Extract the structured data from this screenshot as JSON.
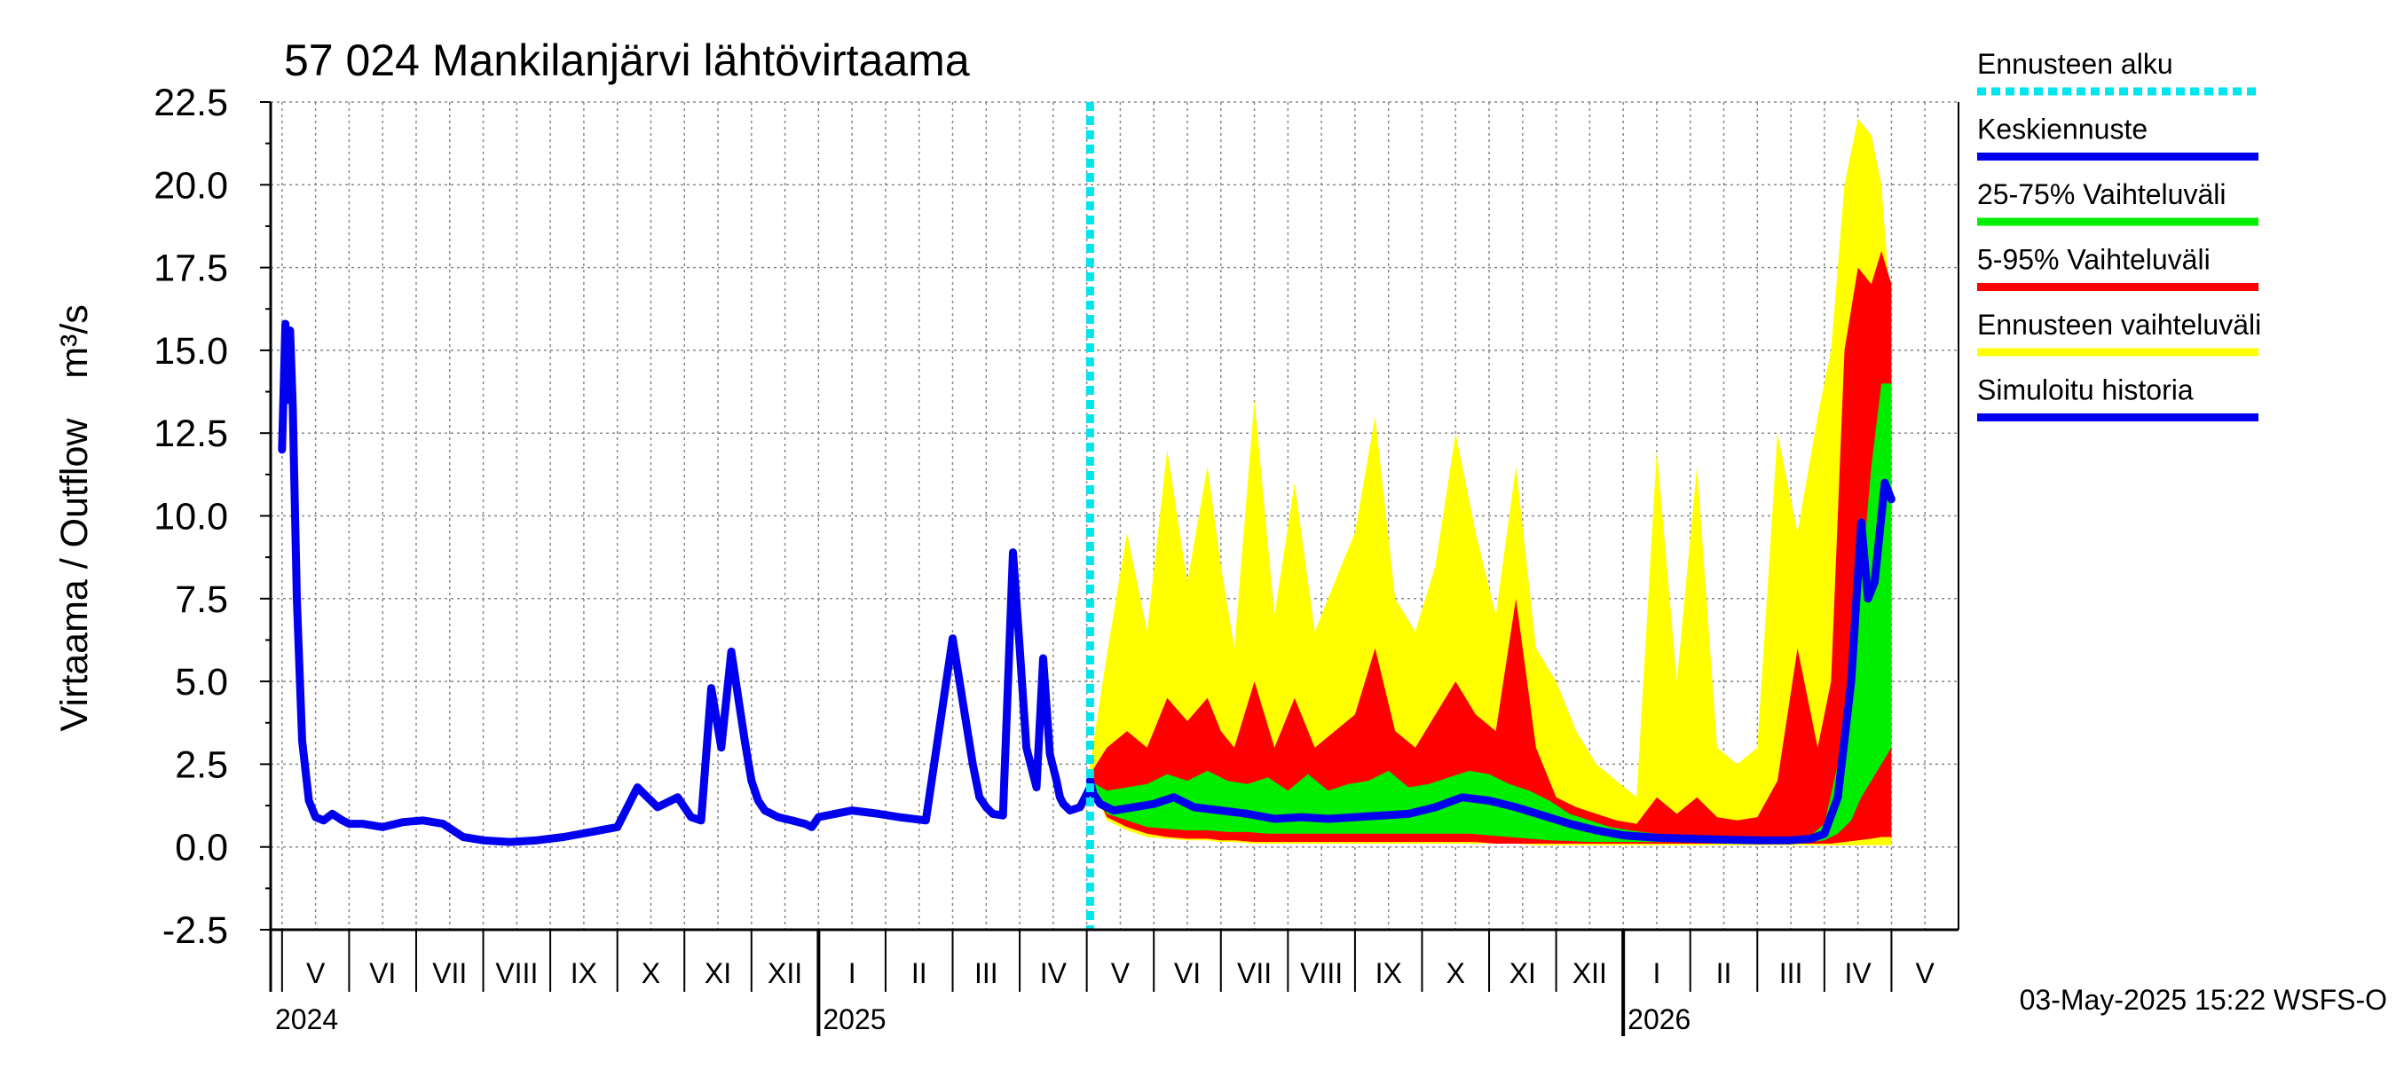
{
  "chart_data": {
    "type": "area",
    "title": "57 024 Mankilanjärvi lähtövirtaama",
    "ylabel_left": "Virtaama / Outflow",
    "ylabel_right": "m³/s",
    "ylim": [
      -2.5,
      22.5
    ],
    "y_ticks": [
      "22.5",
      "20.0",
      "17.5",
      "15.0",
      "12.5",
      "10.0",
      "7.5",
      "5.0",
      "2.5",
      "0.0",
      "-2.5"
    ],
    "grid": true,
    "x_range": [
      "2024-04-01",
      "2026-05-31"
    ],
    "forecast_start": "2025-05-03",
    "months": [
      {
        "label": "V",
        "start": "2024-05-01"
      },
      {
        "label": "VI",
        "start": "2024-06-01"
      },
      {
        "label": "VII",
        "start": "2024-07-01"
      },
      {
        "label": "VIII",
        "start": "2024-08-01"
      },
      {
        "label": "IX",
        "start": "2024-09-01"
      },
      {
        "label": "X",
        "start": "2024-10-01"
      },
      {
        "label": "XI",
        "start": "2024-11-01"
      },
      {
        "label": "XII",
        "start": "2024-12-01"
      },
      {
        "label": "I",
        "start": "2025-01-01"
      },
      {
        "label": "II",
        "start": "2025-02-01"
      },
      {
        "label": "III",
        "start": "2025-03-01"
      },
      {
        "label": "IV",
        "start": "2025-04-01"
      },
      {
        "label": "V",
        "start": "2025-05-01"
      },
      {
        "label": "VI",
        "start": "2025-06-01"
      },
      {
        "label": "VII",
        "start": "2025-07-01"
      },
      {
        "label": "VIII",
        "start": "2025-08-01"
      },
      {
        "label": "IX",
        "start": "2025-09-01"
      },
      {
        "label": "X",
        "start": "2025-10-01"
      },
      {
        "label": "XI",
        "start": "2025-11-01"
      },
      {
        "label": "XII",
        "start": "2025-12-01"
      },
      {
        "label": "I",
        "start": "2026-01-01"
      },
      {
        "label": "II",
        "start": "2026-02-01"
      },
      {
        "label": "III",
        "start": "2026-03-01"
      },
      {
        "label": "IV",
        "start": "2026-04-01"
      },
      {
        "label": "V",
        "start": "2026-05-01"
      }
    ],
    "years": [
      {
        "label": "2024",
        "month_index": 0
      },
      {
        "label": "2025",
        "month_index": 8
      },
      {
        "label": "2026",
        "month_index": 20
      }
    ],
    "legend": [
      {
        "label": "Ennusteen alku",
        "color": "#00e5ee",
        "style": "dashed"
      },
      {
        "label": "Keskiennuste",
        "color": "#0000ee",
        "style": "solid"
      },
      {
        "label": "25-75% Vaihteluväli",
        "color": "#00ee00",
        "style": "solid"
      },
      {
        "label": "5-95% Vaihteluväli",
        "color": "#ff0000",
        "style": "solid"
      },
      {
        "label": "Ennusteen vaihteluväli",
        "color": "#ffff00",
        "style": "solid"
      },
      {
        "label": "Simuloitu historia",
        "color": "#0000ee",
        "style": "solid"
      }
    ],
    "footer": "03-May-2025 15:22 WSFS-O",
    "series": [
      {
        "name": "Simuloitu historia",
        "x": [
          0,
          0.05,
          0.08,
          0.12,
          0.16,
          0.22,
          0.3,
          0.4,
          0.5,
          0.62,
          0.75,
          0.9,
          1.0,
          1.2,
          1.5,
          1.8,
          2.1,
          2.4,
          2.7,
          3.0,
          3.4,
          3.8,
          4.2,
          4.6,
          5.0,
          5.3,
          5.6,
          5.9,
          6.0,
          6.1,
          6.25,
          6.4,
          6.55,
          6.7,
          6.9,
          7.0,
          7.1,
          7.2,
          7.3,
          7.4,
          7.5,
          7.6,
          7.7,
          7.8,
          7.9,
          8.0,
          8.5,
          8.9,
          9.2,
          9.6,
          10.0,
          10.3,
          10.4,
          10.5,
          10.6,
          10.75,
          10.9,
          11.0,
          11.1,
          11.25,
          11.35,
          11.45,
          11.55,
          11.6,
          11.65,
          11.75,
          11.9,
          12.05
        ],
        "values": [
          12.0,
          15.8,
          13.5,
          15.6,
          13.3,
          7.5,
          3.2,
          1.4,
          0.9,
          0.8,
          1.0,
          0.8,
          0.7,
          0.7,
          0.6,
          0.75,
          0.8,
          0.7,
          0.3,
          0.2,
          0.15,
          0.2,
          0.3,
          0.45,
          0.6,
          1.8,
          1.2,
          1.5,
          1.2,
          0.9,
          0.8,
          4.8,
          3.0,
          5.9,
          3.2,
          2.0,
          1.4,
          1.1,
          1.0,
          0.9,
          0.85,
          0.8,
          0.75,
          0.7,
          0.6,
          0.9,
          1.1,
          1.0,
          0.9,
          0.8,
          6.3,
          2.5,
          1.5,
          1.2,
          1.0,
          0.95,
          8.9,
          6.0,
          3.0,
          1.8,
          5.7,
          2.8,
          2.0,
          1.5,
          1.3,
          1.1,
          1.2,
          1.8
        ]
      },
      {
        "name": "Keskiennuste",
        "x": [
          12.05,
          12.1,
          12.2,
          12.4,
          12.7,
          13.0,
          13.3,
          13.6,
          14.0,
          14.4,
          14.8,
          15.2,
          15.6,
          16.0,
          16.4,
          16.8,
          17.2,
          17.6,
          18.0,
          18.4,
          18.8,
          19.2,
          19.6,
          20.0,
          20.5,
          21.0,
          21.5,
          22.0,
          22.5,
          22.8,
          23.0,
          23.2,
          23.4,
          23.55,
          23.65,
          23.75,
          23.9,
          24.0
        ],
        "values": [
          2.0,
          1.6,
          1.3,
          1.1,
          1.2,
          1.3,
          1.5,
          1.2,
          1.1,
          1.0,
          0.85,
          0.9,
          0.85,
          0.9,
          0.95,
          1.0,
          1.2,
          1.5,
          1.4,
          1.2,
          0.95,
          0.7,
          0.5,
          0.35,
          0.28,
          0.25,
          0.22,
          0.2,
          0.2,
          0.25,
          0.4,
          1.5,
          5.0,
          9.8,
          7.5,
          8.0,
          11.0,
          10.5
        ]
      },
      {
        "name": "Ennusteen vaihteluväli",
        "x": [
          12.05,
          12.3,
          12.6,
          12.9,
          13.2,
          13.5,
          13.8,
          14.0,
          14.2,
          14.5,
          14.8,
          15.1,
          15.4,
          15.7,
          16.0,
          16.3,
          16.6,
          16.9,
          17.2,
          17.5,
          17.8,
          18.1,
          18.4,
          18.7,
          19.0,
          19.3,
          19.6,
          19.9,
          20.2,
          20.5,
          20.8,
          21.1,
          21.4,
          21.7,
          22.0,
          22.3,
          22.6,
          22.9,
          23.1,
          23.3,
          23.5,
          23.7,
          23.85,
          24.0
        ],
        "upper": [
          2.5,
          5.8,
          9.5,
          6.5,
          12.0,
          8.0,
          11.5,
          8.5,
          6.0,
          13.5,
          7.0,
          11.0,
          6.5,
          8.0,
          9.5,
          13.0,
          7.5,
          6.5,
          8.5,
          12.5,
          9.5,
          7.0,
          11.5,
          6.0,
          5.0,
          3.5,
          2.5,
          2.0,
          1.5,
          12.0,
          5.0,
          11.5,
          3.0,
          2.5,
          3.0,
          12.5,
          9.5,
          13.0,
          15.0,
          20.0,
          22.0,
          21.5,
          20.0,
          16.0
        ],
        "lower": [
          2.0,
          0.8,
          0.5,
          0.3,
          0.25,
          0.2,
          0.2,
          0.15,
          0.15,
          0.1,
          0.1,
          0.1,
          0.1,
          0.1,
          0.1,
          0.1,
          0.1,
          0.1,
          0.1,
          0.1,
          0.1,
          0.1,
          0.1,
          0.05,
          0.05,
          0.05,
          0.05,
          0.05,
          0.05,
          0.05,
          0.05,
          0.05,
          0.05,
          0.05,
          0.05,
          0.05,
          0.05,
          0.05,
          0.05,
          0.05,
          0.05,
          0.05,
          0.05,
          0.05
        ]
      },
      {
        "name": "5-95% Vaihteluväli",
        "x": [
          12.05,
          12.3,
          12.6,
          12.9,
          13.2,
          13.5,
          13.8,
          14.0,
          14.2,
          14.5,
          14.8,
          15.1,
          15.4,
          15.7,
          16.0,
          16.3,
          16.6,
          16.9,
          17.2,
          17.5,
          17.8,
          18.1,
          18.4,
          18.7,
          19.0,
          19.3,
          19.6,
          19.9,
          20.2,
          20.5,
          20.8,
          21.1,
          21.4,
          21.7,
          22.0,
          22.3,
          22.6,
          22.9,
          23.1,
          23.3,
          23.5,
          23.7,
          23.85,
          24.0
        ],
        "upper": [
          2.2,
          3.0,
          3.5,
          3.0,
          4.5,
          3.8,
          4.5,
          3.5,
          3.0,
          5.0,
          3.0,
          4.5,
          3.0,
          3.5,
          4.0,
          6.0,
          3.5,
          3.0,
          4.0,
          5.0,
          4.0,
          3.5,
          7.5,
          3.0,
          1.5,
          1.2,
          1.0,
          0.8,
          0.7,
          1.5,
          1.0,
          1.5,
          0.9,
          0.8,
          0.9,
          2.0,
          6.0,
          3.0,
          5.0,
          15.0,
          17.5,
          17.0,
          18.0,
          17.0
        ],
        "lower": [
          2.0,
          0.9,
          0.6,
          0.4,
          0.3,
          0.25,
          0.25,
          0.2,
          0.2,
          0.15,
          0.15,
          0.15,
          0.15,
          0.15,
          0.15,
          0.15,
          0.15,
          0.15,
          0.15,
          0.15,
          0.15,
          0.1,
          0.1,
          0.1,
          0.1,
          0.1,
          0.1,
          0.1,
          0.1,
          0.1,
          0.1,
          0.1,
          0.1,
          0.1,
          0.1,
          0.1,
          0.1,
          0.1,
          0.1,
          0.15,
          0.2,
          0.25,
          0.3,
          0.3
        ]
      },
      {
        "name": "25-75% Vaihteluväli",
        "x": [
          12.05,
          12.3,
          12.6,
          12.9,
          13.2,
          13.5,
          13.8,
          14.1,
          14.4,
          14.7,
          15.0,
          15.3,
          15.6,
          15.9,
          16.2,
          16.5,
          16.8,
          17.1,
          17.4,
          17.7,
          18.0,
          18.3,
          18.6,
          18.9,
          19.2,
          19.5,
          19.8,
          20.1,
          20.5,
          21.0,
          21.5,
          22.0,
          22.5,
          22.8,
          23.0,
          23.2,
          23.4,
          23.55,
          23.7,
          23.85,
          24.0
        ],
        "upper": [
          2.0,
          1.7,
          1.8,
          1.9,
          2.2,
          2.0,
          2.3,
          2.0,
          1.9,
          2.1,
          1.7,
          2.2,
          1.7,
          1.9,
          2.0,
          2.3,
          1.8,
          1.9,
          2.1,
          2.3,
          2.2,
          1.9,
          1.7,
          1.4,
          1.0,
          0.8,
          0.6,
          0.5,
          0.4,
          0.35,
          0.3,
          0.3,
          0.3,
          0.35,
          0.7,
          2.5,
          6.0,
          8.0,
          11.5,
          14.0,
          14.0
        ],
        "lower": [
          2.0,
          1.0,
          0.8,
          0.6,
          0.55,
          0.5,
          0.5,
          0.45,
          0.45,
          0.4,
          0.4,
          0.4,
          0.4,
          0.4,
          0.4,
          0.4,
          0.4,
          0.4,
          0.4,
          0.4,
          0.35,
          0.3,
          0.25,
          0.2,
          0.18,
          0.15,
          0.15,
          0.15,
          0.15,
          0.15,
          0.15,
          0.15,
          0.15,
          0.15,
          0.2,
          0.4,
          0.8,
          1.5,
          2.0,
          2.5,
          3.0
        ]
      }
    ]
  }
}
